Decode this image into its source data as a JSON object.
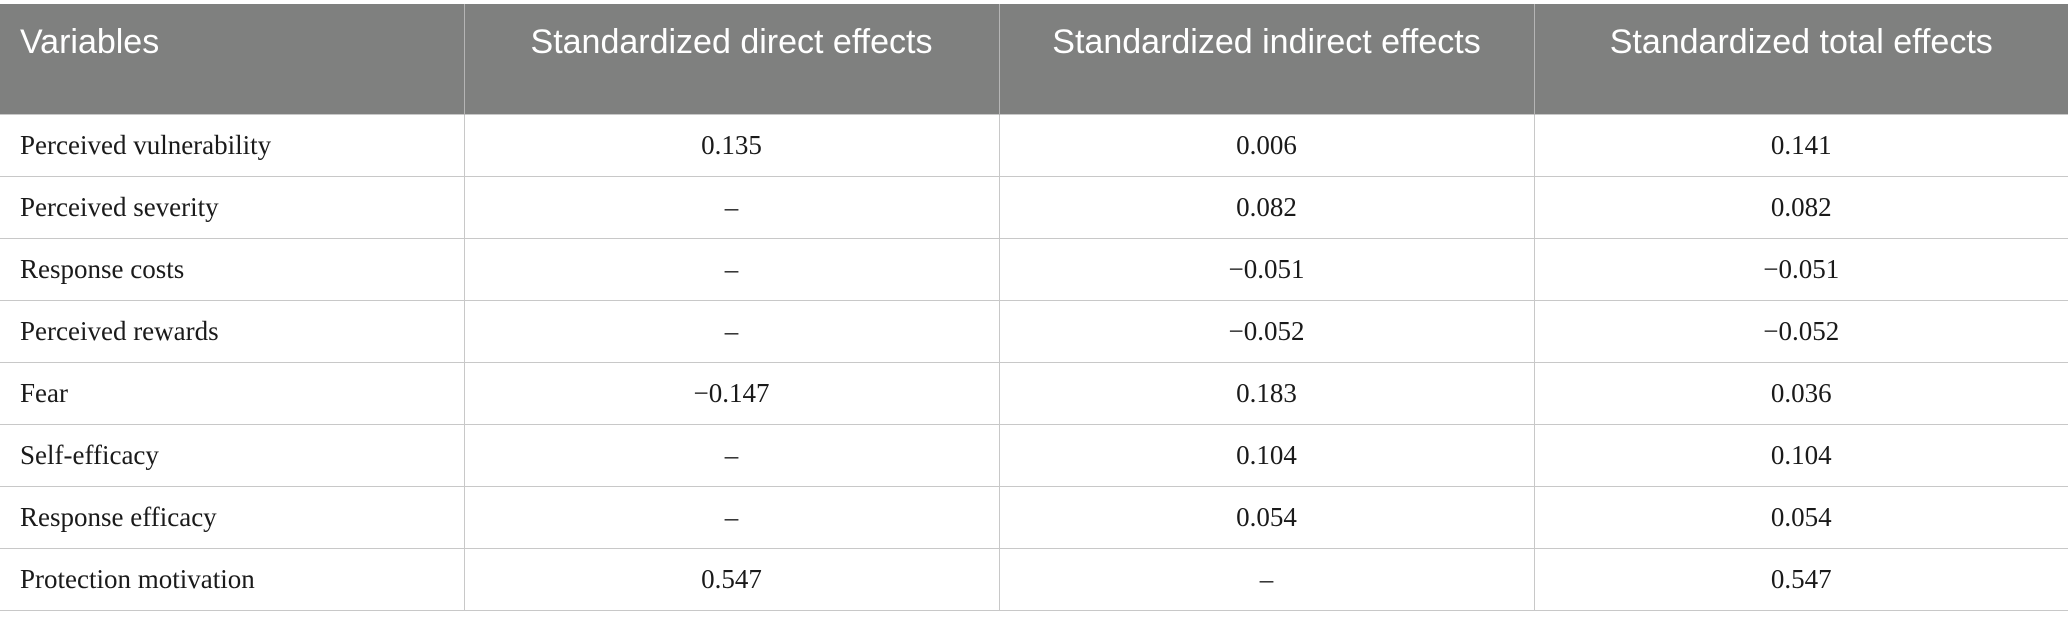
{
  "table": {
    "headers": [
      "Variables",
      "Standardized direct effects",
      "Standardized indirect effects",
      "Standardized total effects"
    ],
    "rows": [
      [
        "Perceived vulnerability",
        "0.135",
        "0.006",
        "0.141"
      ],
      [
        "Perceived severity",
        "–",
        "0.082",
        "0.082"
      ],
      [
        "Response costs",
        "–",
        "−0.051",
        "−0.051"
      ],
      [
        "Perceived rewards",
        "–",
        "−0.052",
        "−0.052"
      ],
      [
        "Fear",
        "−0.147",
        "0.183",
        "0.036"
      ],
      [
        "Self-efficacy",
        "–",
        "0.104",
        "0.104"
      ],
      [
        "Response efficacy",
        "–",
        "0.054",
        "0.054"
      ],
      [
        "Protection motivation",
        "0.547",
        "–",
        "0.547"
      ]
    ]
  },
  "colors": {
    "header_bg": "#7f807f",
    "header_text": "#ffffff",
    "grid": "#c8c8c8"
  }
}
